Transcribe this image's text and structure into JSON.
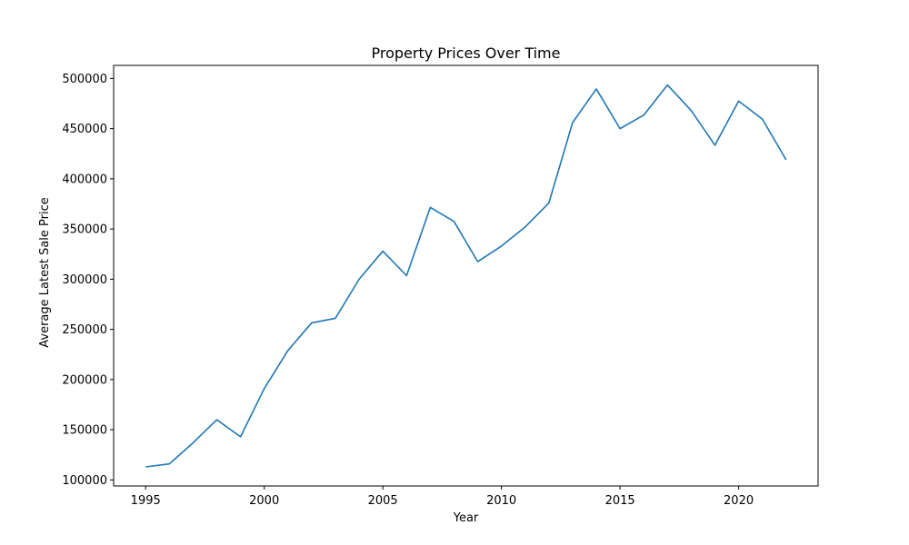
{
  "chart_data": {
    "type": "line",
    "title": "Property Prices Over Time",
    "xlabel": "Year",
    "ylabel": "Average Latest Sale Price",
    "xlim": [
      1993.65,
      2023.35
    ],
    "ylim": [
      94000,
      513000
    ],
    "xticks": [
      1995,
      2000,
      2005,
      2010,
      2015,
      2020
    ],
    "yticks": [
      100000,
      150000,
      200000,
      250000,
      300000,
      350000,
      400000,
      450000,
      500000
    ],
    "grid": false,
    "series": [
      {
        "color": "#1f77b4",
        "x": [
          1995,
          1996,
          1997,
          1998,
          1999,
          2000,
          2001,
          2002,
          2003,
          2004,
          2005,
          2006,
          2007,
          2008,
          2009,
          2010,
          2011,
          2012,
          2013,
          2014,
          2015,
          2016,
          2017,
          2018,
          2019,
          2020,
          2021,
          2022
        ],
        "y": [
          113000,
          116000,
          137000,
          160000,
          143000,
          191000,
          229000,
          256500,
          261000,
          300000,
          328000,
          303500,
          371500,
          357500,
          317500,
          333000,
          352000,
          376000,
          456000,
          489500,
          450000,
          463500,
          493500,
          468000,
          433500,
          477500,
          459500,
          419000
        ]
      }
    ]
  }
}
